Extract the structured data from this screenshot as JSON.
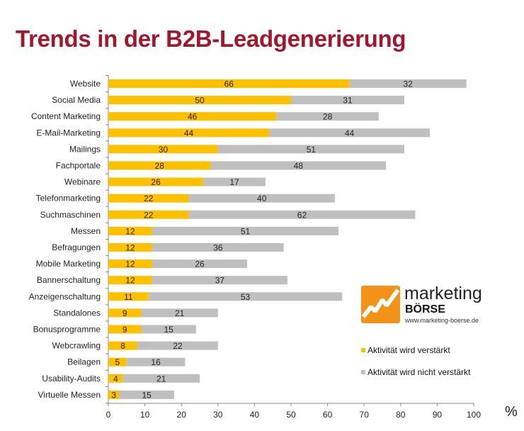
{
  "chart_data": {
    "type": "bar",
    "orientation": "horizontal",
    "stacked": true,
    "title": "Trends in der B2B-Leadgenerierung",
    "categories": [
      "Website",
      "Social Media",
      "Content Marketing",
      "E-Mail-Marketing",
      "Mailings",
      "Fachportale",
      "Webinare",
      "Telefonmarketing",
      "Suchmaschinen",
      "Messen",
      "Befragungen",
      "Mobile Marketing",
      "Bannerschaltung",
      "Anzeigenschaltung",
      "Standalones",
      "Bonusprogramme",
      "Webcrawling",
      "Beilagen",
      "Usability-Audits",
      "Virtuelle Messen"
    ],
    "series": [
      {
        "name": "Aktivität wird verstärkt",
        "color": "#FFC000",
        "values": [
          66,
          50,
          46,
          44,
          30,
          28,
          26,
          22,
          22,
          12,
          12,
          12,
          12,
          11,
          9,
          9,
          8,
          5,
          4,
          3
        ]
      },
      {
        "name": "Aktivität wird nicht verstärkt",
        "color": "#BFBFBF",
        "values": [
          32,
          31,
          28,
          44,
          51,
          48,
          17,
          40,
          62,
          51,
          36,
          26,
          37,
          53,
          21,
          15,
          22,
          16,
          21,
          15
        ]
      }
    ],
    "xlim": [
      0,
      100
    ],
    "xticks": [
      0,
      10,
      20,
      30,
      40,
      50,
      60,
      70,
      80,
      90,
      100
    ],
    "xunit": "%",
    "grid": false,
    "legend": "right"
  },
  "logo": {
    "line1": "marketing",
    "line2": "BÖRSE",
    "url": "www.marketing-boerse.de"
  }
}
